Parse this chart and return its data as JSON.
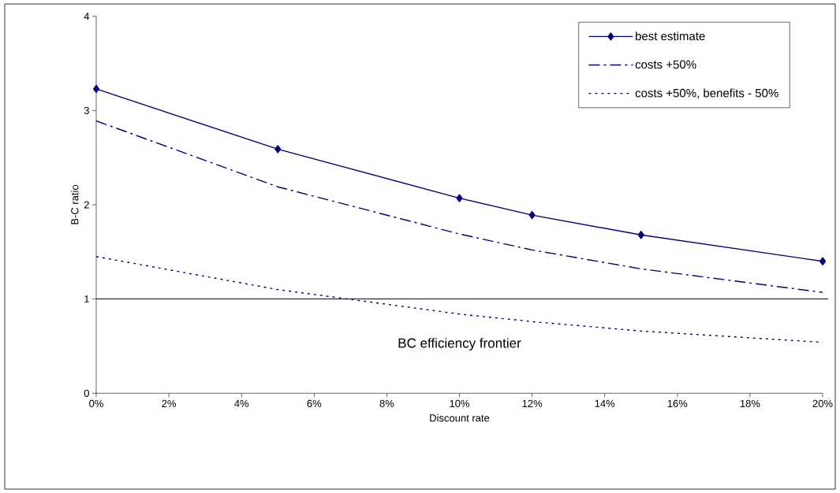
{
  "chart_data": {
    "type": "line",
    "xlabel": "Discount rate",
    "ylabel": "B-C ratio",
    "x": [
      0,
      5,
      10,
      12,
      15,
      20
    ],
    "series": [
      {
        "name": "best estimate",
        "color": "#000080",
        "marker": "diamond",
        "line_style": "solid",
        "values": [
          3.23,
          2.59,
          2.07,
          1.89,
          1.68,
          1.4
        ]
      },
      {
        "name": "costs +50%",
        "color": "#000080",
        "marker": "none",
        "line_style": "dashdot",
        "values": [
          2.89,
          2.19,
          1.69,
          1.52,
          1.32,
          1.07
        ]
      },
      {
        "name": "costs +50%, benefits - 50%",
        "color": "#000080",
        "marker": "none",
        "line_style": "dotted",
        "values": [
          1.45,
          1.1,
          0.84,
          0.76,
          0.66,
          0.54
        ]
      }
    ],
    "xlim": [
      0,
      20
    ],
    "ylim": [
      0,
      4
    ],
    "xticks": [
      {
        "value": 0,
        "label": "0%"
      },
      {
        "value": 2,
        "label": "2%"
      },
      {
        "value": 4,
        "label": "4%"
      },
      {
        "value": 6,
        "label": "6%"
      },
      {
        "value": 8,
        "label": "8%"
      },
      {
        "value": 10,
        "label": "10%"
      },
      {
        "value": 12,
        "label": "12%"
      },
      {
        "value": 14,
        "label": "14%"
      },
      {
        "value": 16,
        "label": "16%"
      },
      {
        "value": 18,
        "label": "18%"
      },
      {
        "value": 20,
        "label": "20%"
      }
    ],
    "yticks": [
      0,
      1,
      2,
      3,
      4
    ],
    "ref_lines": [
      {
        "axis": "y",
        "value": 1,
        "label": "BC efficiency frontier",
        "color": "#000000"
      }
    ],
    "legend": "top right",
    "grid": false
  }
}
